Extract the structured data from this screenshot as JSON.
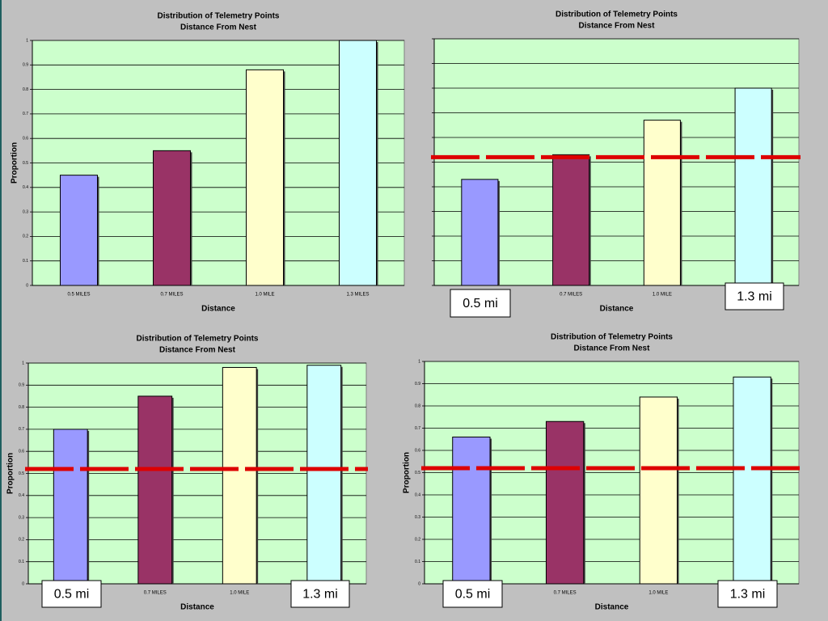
{
  "chart_data": [
    {
      "type": "bar",
      "title": "Distribution of Telemetry Points",
      "subtitle": "Distance From Nest",
      "xlabel": "Distance",
      "ylabel": "Proportion",
      "categories": [
        "0.5 MILES",
        "0.7 MILES",
        "1.0 MILE",
        "1.3 MILES"
      ],
      "values": [
        0.45,
        0.55,
        0.88,
        1.0
      ],
      "colors": [
        "#9999ff",
        "#993366",
        "#ffffcc",
        "#ccffff"
      ],
      "ylim": [
        0,
        1
      ],
      "yticks": [
        0,
        0.1,
        0.2,
        0.3,
        0.4,
        0.5,
        0.6,
        0.7,
        0.8,
        0.9,
        1
      ],
      "grid": true
    },
    {
      "type": "bar",
      "title": "Distribution of Telemetry Points",
      "subtitle": "Distance From Nest",
      "xlabel": "Distance",
      "categories": [
        null,
        "0.7 MILES",
        "1.0 MILE",
        null
      ],
      "values": [
        0.43,
        0.53,
        0.67,
        0.8
      ],
      "colors": [
        "#9999ff",
        "#993366",
        "#ffffcc",
        "#ccffff"
      ],
      "ylim": [
        0,
        1
      ],
      "yticks": [
        0,
        0.1,
        0.2,
        0.3,
        0.4,
        0.5,
        0.6,
        0.7,
        0.8,
        0.9,
        1
      ],
      "grid": true,
      "tick_labels": false,
      "reference_line": {
        "value": 0.52,
        "color": "#dd0000"
      },
      "annotations": [
        "0.5 mi",
        "1.3 mi"
      ]
    },
    {
      "type": "bar",
      "title": "Distribution of Telemetry Points",
      "subtitle": "Distance From Nest",
      "xlabel": "Distance",
      "ylabel": "Proportion",
      "categories": [
        null,
        "0.7 MILES",
        "1.0 MILE",
        null
      ],
      "values": [
        0.7,
        0.85,
        0.98,
        0.99
      ],
      "colors": [
        "#9999ff",
        "#993366",
        "#ffffcc",
        "#ccffff"
      ],
      "ylim": [
        0,
        1
      ],
      "yticks": [
        0,
        0.1,
        0.2,
        0.3,
        0.4,
        0.5,
        0.6,
        0.7,
        0.8,
        0.9,
        1
      ],
      "grid": true,
      "reference_line": {
        "value": 0.52,
        "color": "#dd0000"
      },
      "annotations": [
        "0.5 mi",
        "1.3 mi"
      ]
    },
    {
      "type": "bar",
      "title": "Distribution of Telemetry Points",
      "subtitle": "Distance From Nest",
      "xlabel": "Distance",
      "ylabel": "Proportion",
      "categories": [
        null,
        "0.7 MILES",
        "1.0 MILE",
        null
      ],
      "values": [
        0.66,
        0.73,
        0.84,
        0.93
      ],
      "colors": [
        "#9999ff",
        "#993366",
        "#ffffcc",
        "#ccffff"
      ],
      "ylim": [
        0,
        1
      ],
      "yticks": [
        0,
        0.1,
        0.2,
        0.3,
        0.4,
        0.5,
        0.6,
        0.7,
        0.8,
        0.9,
        1
      ],
      "grid": true,
      "reference_line": {
        "value": 0.52,
        "color": "#dd0000"
      },
      "annotations": [
        "0.5 mi",
        "1.3 mi"
      ]
    }
  ]
}
